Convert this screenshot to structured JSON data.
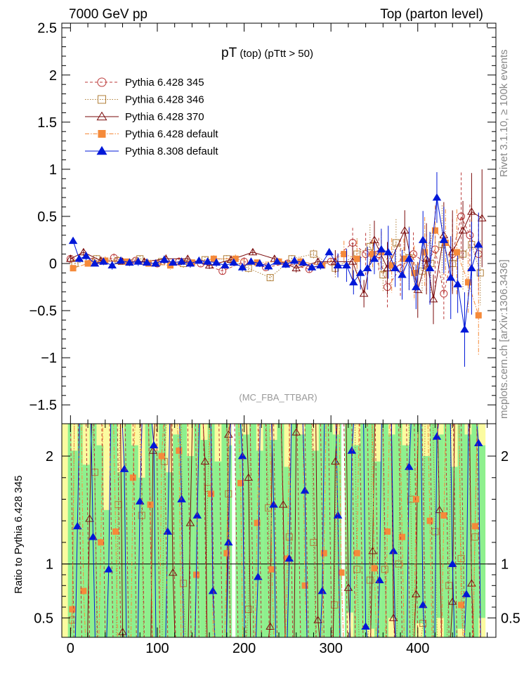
{
  "header": {
    "left": "7000 GeV pp",
    "right": "Top (parton level)"
  },
  "side_text": {
    "rivet": "Rivet 3.1.10, ≥ 100k events",
    "source": "mcplots.cern.ch [arXiv:1306.3436]"
  },
  "plot_title": {
    "main": "pT",
    "sub1": " (top)",
    "sub2": " (pTtt > 50)"
  },
  "analysis_label": "(MC_FBA_TTBAR)",
  "ratio_ylabel": "Ratio to Pythia 6.428 345",
  "colors": {
    "p345": "#bb3a3a",
    "p346": "#b07f3a",
    "p370": "#7a0a0a",
    "p6def": "#f58a3a",
    "p8def": "#0018d8",
    "band_green": "#8ef08e",
    "band_yellow": "#fbfba0"
  },
  "chart_data": [
    {
      "type": "scatter",
      "panel": "main",
      "title": "pT (top) (pTtt > 50)",
      "xlim": [
        -10,
        490
      ],
      "ylim": [
        -1.7,
        2.55
      ],
      "yticks": [
        -1.5,
        -1,
        -0.5,
        0,
        0.5,
        1,
        1.5,
        2,
        2.5
      ],
      "ytick_labels": [
        "−1.5",
        "−1",
        "−0.5",
        "0",
        "0.5",
        "1",
        "1.5",
        "2",
        "2.5"
      ],
      "legend_position": "top-left",
      "series": [
        {
          "name": "Pythia 6.428 345",
          "key": "p345",
          "marker": "open-circle",
          "line": "dashed",
          "x": [
            0,
            25,
            50,
            75,
            100,
            125,
            150,
            175,
            200,
            225,
            250,
            275,
            300,
            325,
            340,
            355,
            365,
            380,
            395,
            410,
            420,
            430,
            440,
            450,
            460,
            470
          ],
          "y": [
            0.05,
            0.02,
            0.06,
            0.03,
            0.0,
            0.02,
            0.0,
            -0.08,
            0.02,
            -0.04,
            0.0,
            -0.06,
            0.02,
            0.22,
            0.1,
            0.1,
            -0.25,
            -0.05,
            0.1,
            0.0,
            0.15,
            -0.32,
            0.1,
            0.5,
            0.3,
            0.1
          ]
        },
        {
          "name": "Pythia 6.428 346",
          "key": "p346",
          "marker": "open-square",
          "line": "dotted",
          "x": [
            5,
            30,
            55,
            80,
            105,
            130,
            155,
            180,
            205,
            230,
            255,
            280,
            305,
            330,
            345,
            360,
            375,
            390,
            405,
            415,
            428,
            440,
            452,
            462,
            472
          ],
          "y": [
            0.0,
            0.05,
            0.03,
            0.05,
            0.02,
            0.0,
            0.04,
            0.05,
            -0.05,
            -0.15,
            0.05,
            0.1,
            -0.05,
            0.1,
            0.18,
            -0.12,
            0.22,
            0.06,
            -0.08,
            0.0,
            0.2,
            0.0,
            0.1,
            0.2,
            -0.1
          ]
        },
        {
          "name": "Pythia 6.428 370",
          "key": "p370",
          "marker": "open-triangle",
          "line": "solid",
          "x": [
            0,
            15,
            35,
            60,
            85,
            110,
            135,
            160,
            185,
            210,
            235,
            260,
            285,
            305,
            325,
            338,
            350,
            365,
            385,
            400,
            410,
            418,
            430,
            440,
            452,
            462,
            474
          ],
          "y": [
            0.05,
            0.12,
            0.03,
            0.02,
            0.02,
            0.05,
            0.05,
            -0.02,
            0.04,
            0.12,
            0.05,
            -0.05,
            0.02,
            0.02,
            0.02,
            -0.32,
            0.25,
            -0.05,
            0.35,
            -0.28,
            0.05,
            -0.38,
            0.3,
            0.12,
            0.35,
            0.55,
            0.48
          ]
        },
        {
          "name": "Pythia 6.428 default",
          "key": "p6def",
          "marker": "filled-square",
          "line": "dashdot",
          "x": [
            3,
            20,
            40,
            65,
            90,
            115,
            140,
            165,
            190,
            215,
            240,
            265,
            290,
            315,
            330,
            348,
            358,
            370,
            384,
            396,
            408,
            420,
            432,
            445,
            458,
            470
          ],
          "y": [
            -0.05,
            0.0,
            0.03,
            0.02,
            0.0,
            -0.02,
            0.01,
            0.05,
            0.05,
            0.01,
            0.02,
            0.02,
            -0.02,
            0.1,
            0.05,
            0.1,
            0.12,
            -0.02,
            0.05,
            -0.1,
            0.12,
            0.35,
            0.22,
            0.12,
            -0.2,
            -0.55
          ]
        },
        {
          "name": "Pythia 8.308 default",
          "key": "p8def",
          "marker": "filled-triangle",
          "line": "solid",
          "x": [
            3,
            10,
            18,
            28,
            38,
            48,
            58,
            68,
            78,
            88,
            98,
            108,
            118,
            128,
            138,
            148,
            158,
            168,
            178,
            188,
            198,
            208,
            218,
            228,
            238,
            248,
            258,
            268,
            278,
            288,
            298,
            308,
            318,
            326,
            334,
            342,
            350,
            358,
            366,
            374,
            382,
            390,
            398,
            406,
            414,
            422,
            430,
            438,
            446,
            454,
            462,
            470
          ],
          "y": [
            0.24,
            0.05,
            0.08,
            0.0,
            0.02,
            -0.02,
            0.03,
            0.01,
            0.02,
            0.01,
            0.0,
            0.04,
            0.01,
            0.02,
            0.0,
            0.03,
            0.02,
            0.01,
            -0.02,
            0.01,
            -0.04,
            0.02,
            0.0,
            -0.03,
            0.02,
            -0.01,
            0.03,
            0.01,
            -0.04,
            -0.02,
            0.12,
            -0.02,
            -0.02,
            -0.2,
            -0.1,
            -0.05,
            0.05,
            0.15,
            0.12,
            -0.05,
            -0.12,
            0.05,
            -0.25,
            0.25,
            -0.05,
            0.7,
            0.25,
            -0.15,
            -0.22,
            -0.7,
            -0.05,
            0.2
          ]
        }
      ]
    },
    {
      "type": "scatter",
      "panel": "ratio",
      "ylabel": "Ratio to Pythia 6.428 345",
      "xlim": [
        -10,
        490
      ],
      "ylim": [
        0.32,
        2.3
      ],
      "yticks": [
        0.5,
        1,
        2
      ],
      "ytick_labels": [
        "0.5",
        "1",
        "2"
      ],
      "xticks": [
        0,
        100,
        200,
        300,
        400
      ],
      "xtick_labels": [
        "0",
        "100",
        "200",
        "300",
        "400"
      ],
      "reference_line": 1,
      "series": [
        {
          "key": "p346",
          "marker": "open-square",
          "x": [
            2,
            28,
            55,
            82,
            108,
            130,
            158,
            182,
            205,
            228,
            252,
            280,
            304,
            330,
            345,
            362,
            378,
            392,
            406,
            420,
            436,
            450,
            466
          ],
          "y": [
            0.48,
            1.85,
            1.55,
            1.45,
            1.95,
            0.82,
            1.7,
            1.65,
            0.58,
            1.52,
            1.25,
            1.2,
            0.62,
            0.95,
            0.85,
            0.95,
            1.0,
            1.6,
            0.45,
            1.3,
            0.8,
            1.05,
            1.25
          ]
        },
        {
          "key": "p370",
          "marker": "open-triangle",
          "x": [
            22,
            60,
            95,
            118,
            138,
            155,
            182,
            205,
            230,
            245,
            260,
            285,
            305,
            320,
            348,
            372,
            398,
            425,
            440,
            462
          ],
          "y": [
            1.42,
            0.37,
            2.05,
            0.92,
            1.38,
            1.95,
            2.2,
            1.8,
            0.42,
            1.55,
            2.22,
            0.48,
            1.95,
            0.78,
            1.12,
            0.5,
            0.72,
            1.5,
            0.65,
            0.82
          ]
        },
        {
          "key": "p6def",
          "marker": "filled-square",
          "x": [
            2,
            15,
            35,
            52,
            72,
            92,
            105,
            125,
            145,
            162,
            180,
            196,
            215,
            232,
            250,
            270,
            292,
            312,
            330,
            350,
            365,
            382,
            398,
            414,
            430,
            450,
            466
          ],
          "y": [
            0.58,
            0.75,
            1.2,
            1.3,
            1.8,
            1.55,
            2.0,
            2.05,
            0.9,
            1.65,
            1.1,
            1.75,
            1.38,
            0.95,
            1.05,
            0.8,
            1.1,
            0.92,
            1.1,
            0.96,
            1.3,
            1.25,
            1.6,
            1.4,
            1.45,
            0.62,
            1.35
          ]
        },
        {
          "key": "p8def",
          "marker": "filled-triangle",
          "x": [
            8,
            26,
            44,
            62,
            80,
            96,
            112,
            128,
            146,
            164,
            182,
            198,
            216,
            234,
            252,
            270,
            290,
            308,
            324,
            340,
            356,
            372,
            390,
            406,
            422,
            440,
            456,
            470
          ],
          "y": [
            1.35,
            1.25,
            0.95,
            1.88,
            1.58,
            2.1,
            1.3,
            1.6,
            1.45,
            0.75,
            1.2,
            2.0,
            0.88,
            1.55,
            1.05,
            1.68,
            0.75,
            1.45,
            2.05,
            0.42,
            0.85,
            1.12,
            1.9,
            0.62,
            2.18,
            1.0,
            0.72,
            2.12
          ]
        }
      ]
    }
  ]
}
